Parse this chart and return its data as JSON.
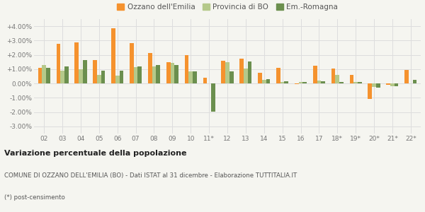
{
  "categories": [
    "02",
    "03",
    "04",
    "05",
    "06",
    "07",
    "08",
    "09",
    "10",
    "11*",
    "12",
    "13",
    "14",
    "15",
    "16",
    "17",
    "18*",
    "19*",
    "20*",
    "21*",
    "22*"
  ],
  "ozzano": [
    1.1,
    2.75,
    2.85,
    1.65,
    3.85,
    2.8,
    2.15,
    1.5,
    2.0,
    0.4,
    1.6,
    1.75,
    0.75,
    1.1,
    -0.05,
    1.25,
    1.05,
    0.6,
    -1.1,
    -0.1,
    0.95
  ],
  "provincia": [
    1.3,
    0.9,
    1.0,
    0.6,
    0.55,
    1.15,
    1.2,
    1.45,
    0.85,
    0.0,
    1.5,
    1.05,
    0.25,
    0.1,
    0.1,
    0.2,
    0.6,
    0.1,
    -0.25,
    -0.2,
    0.0
  ],
  "emilia": [
    1.1,
    1.2,
    1.65,
    0.9,
    0.9,
    1.2,
    1.3,
    1.3,
    0.85,
    -1.95,
    0.85,
    1.55,
    0.3,
    0.15,
    0.1,
    0.15,
    0.1,
    0.1,
    -0.3,
    -0.2,
    0.25
  ],
  "color_ozzano": "#f5922e",
  "color_provincia": "#b5c98a",
  "color_emilia": "#6b8f4e",
  "title_bold": "Variazione percentuale della popolazione",
  "subtitle": "COMUNE DI OZZANO DELL'EMILIA (BO) - Dati ISTAT al 31 dicembre - Elaborazione TUTTITALIA.IT",
  "footnote": "(*) post-censimento",
  "legend_labels": [
    "Ozzano dell'Emilia",
    "Provincia di BO",
    "Em.-Romagna"
  ],
  "ylim": [
    -3.5,
    4.5
  ],
  "yticks": [
    -3.0,
    -2.0,
    -1.0,
    0.0,
    1.0,
    2.0,
    3.0,
    4.0
  ],
  "ytick_labels": [
    "-3.00%",
    "-2.00%",
    "-1.00%",
    "0.00%",
    "+1.00%",
    "+2.00%",
    "+3.00%",
    "+4.00%"
  ],
  "background_color": "#f5f5f0",
  "grid_color": "#dddddd"
}
